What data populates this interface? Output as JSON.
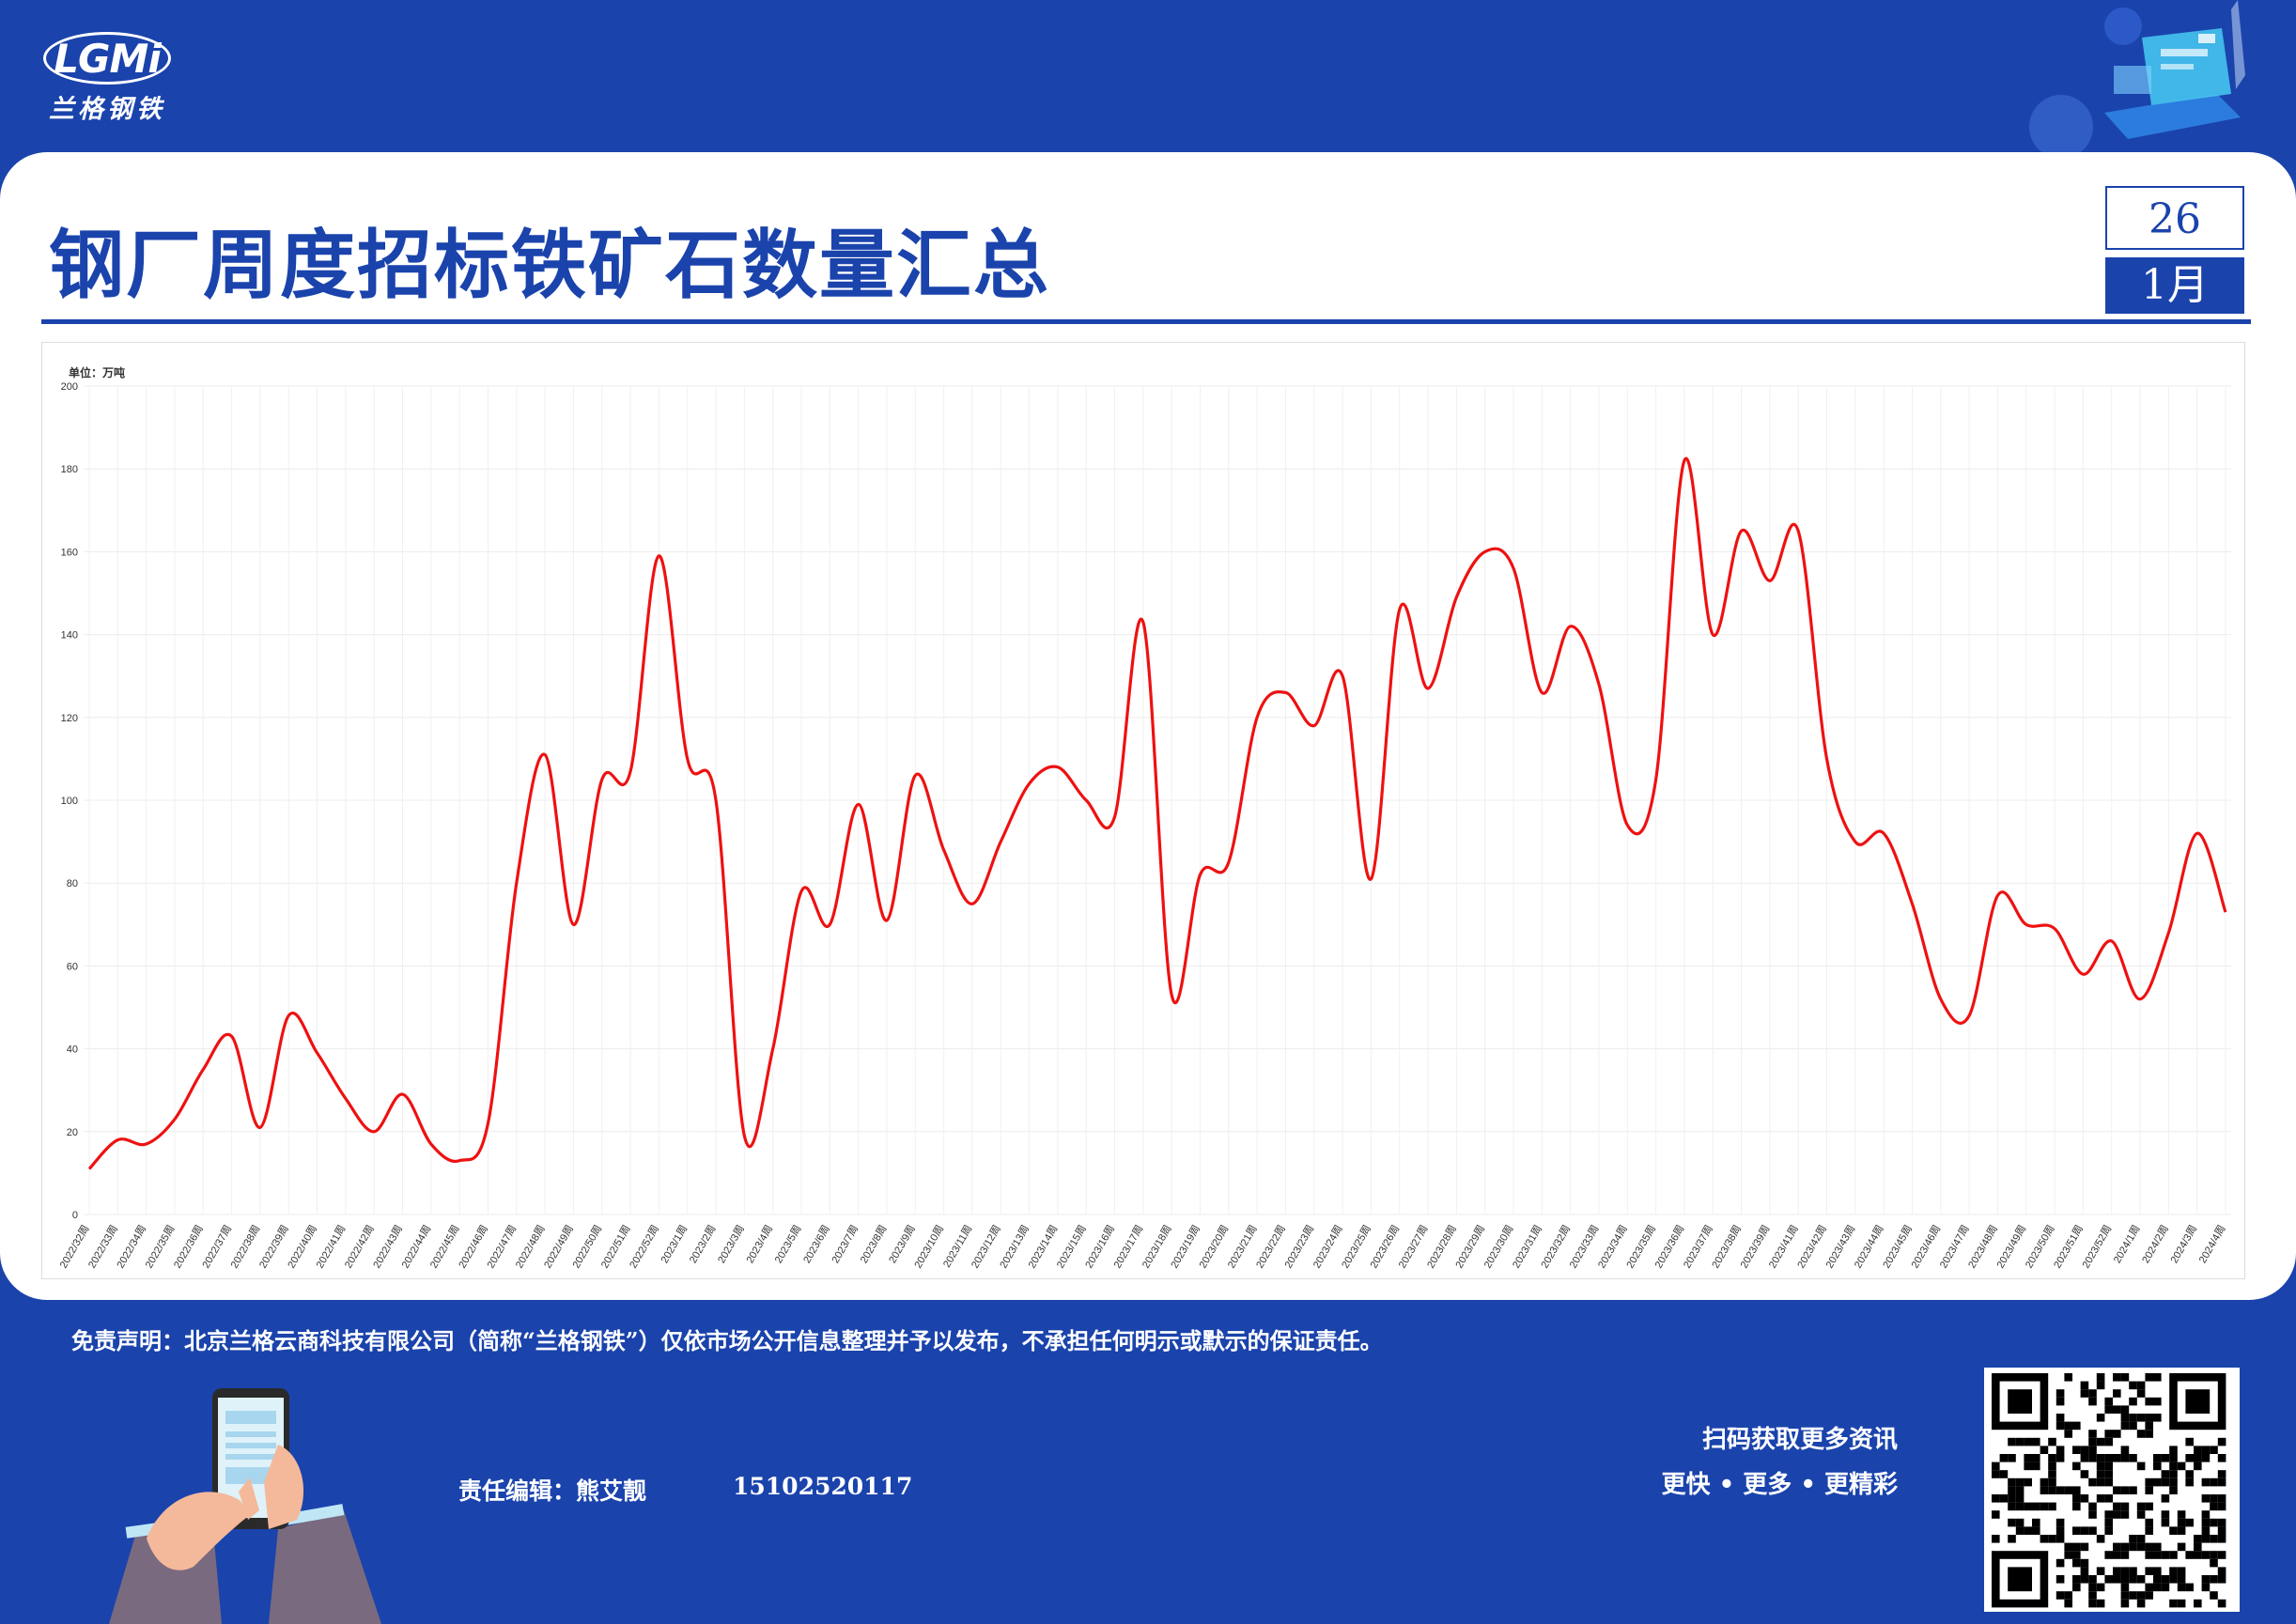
{
  "brand": {
    "logo_text": "LGMi",
    "logo_cn": "兰格钢铁"
  },
  "header": {
    "title": "钢厂周度招标铁矿石数量汇总",
    "day": "26",
    "month": "1月"
  },
  "footer": {
    "disclaimer": "免责声明：北京兰格云商科技有限公司（简称“兰格钢铁”）仅依市场公开信息整理并予以发布，不承担任何明示或默示的保证责任。",
    "editor": "责任编辑：熊艾靓",
    "phone": "15102520117",
    "scan_text": "扫码获取更多资讯",
    "slogan": "更快 • 更多 • 更精彩"
  },
  "colors": {
    "brand_blue": "#1a43ac",
    "line": "#ee1111"
  },
  "chart_data": {
    "type": "line",
    "unit_label": "单位：万吨",
    "ylim": [
      0,
      200
    ],
    "yticks": [
      0,
      20,
      40,
      60,
      80,
      100,
      120,
      140,
      160,
      180,
      200
    ],
    "grid": true,
    "categories": [
      "2022/32周",
      "2022/33周",
      "2022/34周",
      "2022/35周",
      "2022/36周",
      "2022/37周",
      "2022/38周",
      "2022/39周",
      "2022/40周",
      "2022/41周",
      "2022/42周",
      "2022/43周",
      "2022/44周",
      "2022/45周",
      "2022/46周",
      "2022/47周",
      "2022/48周",
      "2022/49周",
      "2022/50周",
      "2022/51周",
      "2022/52周",
      "2023/1周",
      "2023/2周",
      "2023/3周",
      "2023/4周",
      "2023/5周",
      "2023/6周",
      "2023/7周",
      "2023/8周",
      "2023/9周",
      "2023/10周",
      "2023/11周",
      "2023/12周",
      "2023/13周",
      "2023/14周",
      "2023/15周",
      "2023/16周",
      "2023/17周",
      "2023/18周",
      "2023/19周",
      "2023/20周",
      "2023/21周",
      "2023/22周",
      "2023/23周",
      "2023/24周",
      "2023/25周",
      "2023/26周",
      "2023/27周",
      "2023/28周",
      "2023/29周",
      "2023/30周",
      "2023/31周",
      "2023/32周",
      "2023/33周",
      "2023/34周",
      "2023/35周",
      "2023/36周",
      "2023/37周",
      "2023/38周",
      "2023/39周",
      "2023/41周",
      "2023/42周",
      "2023/43周",
      "2023/44周",
      "2023/45周",
      "2023/46周",
      "2023/47周",
      "2023/48周",
      "2023/49周",
      "2023/50周",
      "2023/51周",
      "2023/52周",
      "2024/1周",
      "2024/2周",
      "2024/3周",
      "2024/4周"
    ],
    "series": [
      {
        "values": [
          11,
          18,
          17,
          23,
          35,
          43,
          21,
          48,
          39,
          28,
          20,
          29,
          17,
          13,
          22,
          80,
          111,
          70,
          105,
          107,
          159,
          110,
          100,
          19,
          40,
          78,
          70,
          99,
          71,
          106,
          88,
          75,
          90,
          104,
          108,
          100,
          96,
          143,
          53,
          82,
          85,
          120,
          126,
          118,
          130,
          81,
          146,
          127,
          149,
          160,
          156,
          126,
          142,
          128,
          94,
          105,
          182,
          140,
          165,
          153,
          165,
          110,
          90,
          92,
          75,
          52,
          48,
          77,
          70,
          69,
          58,
          66,
          52,
          68,
          92,
          73
        ]
      }
    ]
  }
}
